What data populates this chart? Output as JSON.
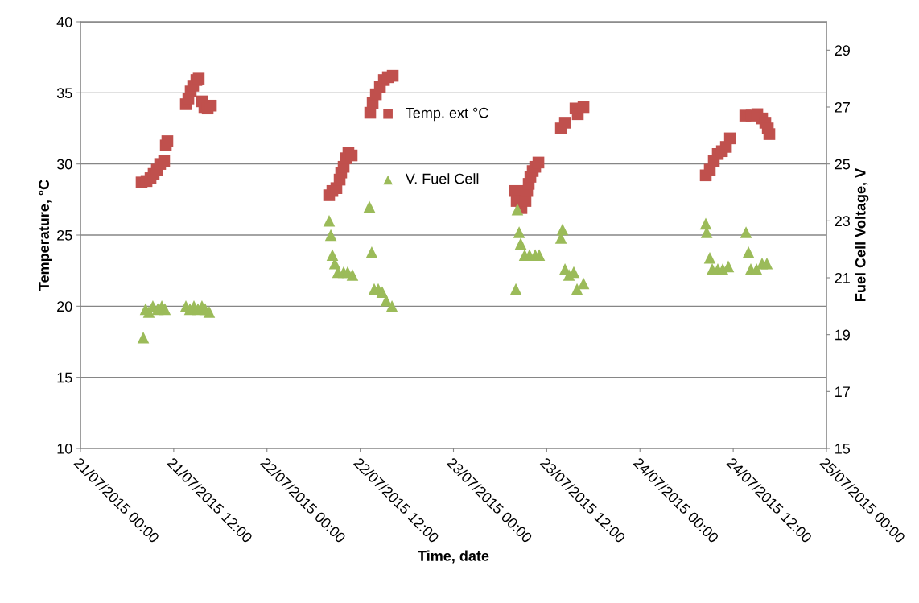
{
  "chart_data": {
    "type": "scatter",
    "xlabel": "Time, date",
    "ylabel": "Temperature, °C",
    "y2label": "Fuel Cell Voltage, V",
    "xlim": [
      "2015-07-21T00:00",
      "2015-07-25T00:00"
    ],
    "xticks": [
      {
        "value": "2015-07-21T00:00",
        "label": "21/07/2015 00:00"
      },
      {
        "value": "2015-07-21T12:00",
        "label": "21/07/2015 12:00"
      },
      {
        "value": "2015-07-22T00:00",
        "label": "22/07/2015 00:00"
      },
      {
        "value": "2015-07-22T12:00",
        "label": "22/07/2015 12:00"
      },
      {
        "value": "2015-07-23T00:00",
        "label": "23/07/2015 00:00"
      },
      {
        "value": "2015-07-23T12:00",
        "label": "23/07/2015 12:00"
      },
      {
        "value": "2015-07-24T00:00",
        "label": "24/07/2015 00:00"
      },
      {
        "value": "2015-07-24T12:00",
        "label": "24/07/2015 12:00"
      },
      {
        "value": "2015-07-25T00:00",
        "label": "25/07/2015 00:00"
      }
    ],
    "ylim": [
      10,
      40
    ],
    "yticks": [
      10,
      15,
      20,
      25,
      30,
      35,
      40
    ],
    "y2lim": [
      15,
      30
    ],
    "y2ticks": [
      15,
      17,
      19,
      21,
      23,
      25,
      27,
      29
    ],
    "grid": "y",
    "legend": "top",
    "series": [
      {
        "name": "Temp. ext °C",
        "color": "#c0504d",
        "marker": "square",
        "x": [
          "2015-07-21T07:52",
          "2015-07-21T08:30",
          "2015-07-21T09:01",
          "2015-07-21T09:25",
          "2015-07-21T09:50",
          "2015-07-21T10:15",
          "2015-07-21T10:46",
          "2015-07-21T10:59",
          "2015-07-21T11:11",
          "2015-07-21T13:34",
          "2015-07-21T13:53",
          "2015-07-21T14:11",
          "2015-07-21T14:30",
          "2015-07-21T14:55",
          "2015-07-21T15:13",
          "2015-07-21T15:38",
          "2015-07-21T15:57",
          "2015-07-21T16:22",
          "2015-07-21T16:47",
          "2015-07-22T08:00",
          "2015-07-22T08:25",
          "2015-07-22T08:56",
          "2015-07-22T09:21",
          "2015-07-22T09:33",
          "2015-07-22T09:52",
          "2015-07-22T10:11",
          "2015-07-22T10:29",
          "2015-07-22T10:54",
          "2015-07-22T13:17",
          "2015-07-22T13:36",
          "2015-07-22T14:01",
          "2015-07-22T14:32",
          "2015-07-22T15:03",
          "2015-07-22T15:34",
          "2015-07-22T16:11",
          "2015-07-23T07:56",
          "2015-07-23T08:08",
          "2015-07-23T08:45",
          "2015-07-23T09:16",
          "2015-07-23T09:29",
          "2015-07-23T09:41",
          "2015-07-23T09:54",
          "2015-07-23T10:12",
          "2015-07-23T10:31",
          "2015-07-23T10:56",
          "2015-07-23T13:50",
          "2015-07-23T14:21",
          "2015-07-23T15:42",
          "2015-07-23T16:00",
          "2015-07-23T16:44",
          "2015-07-24T08:28",
          "2015-07-24T08:59",
          "2015-07-24T09:30",
          "2015-07-24T10:01",
          "2015-07-24T10:33",
          "2015-07-24T11:04",
          "2015-07-24T11:35",
          "2015-07-24T13:33",
          "2015-07-24T14:22",
          "2015-07-24T15:06",
          "2015-07-24T15:43",
          "2015-07-24T16:08",
          "2015-07-24T16:27",
          "2015-07-24T16:39"
        ],
        "values": [
          28.7,
          28.8,
          29.0,
          29.3,
          29.6,
          30.0,
          30.2,
          31.3,
          31.6,
          34.2,
          34.6,
          35.1,
          35.5,
          35.9,
          36.0,
          34.4,
          34.0,
          33.9,
          34.1,
          27.8,
          28.1,
          28.3,
          28.9,
          29.4,
          29.8,
          30.4,
          30.8,
          30.6,
          33.6,
          34.3,
          34.9,
          35.4,
          35.9,
          36.1,
          36.2,
          28.1,
          27.4,
          26.9,
          27.4,
          28.1,
          28.6,
          29.1,
          29.5,
          29.8,
          30.1,
          32.5,
          32.9,
          33.9,
          33.5,
          34.0,
          29.2,
          29.6,
          30.2,
          30.7,
          30.9,
          31.2,
          31.8,
          33.4,
          33.4,
          33.5,
          33.2,
          32.9,
          32.5,
          32.1
        ]
      },
      {
        "name": "V. Fuel Cell",
        "color": "#9bbb59",
        "marker": "triangle",
        "axis": "y2",
        "x": [
          "2015-07-21T08:05",
          "2015-07-21T08:23",
          "2015-07-21T08:48",
          "2015-07-21T09:19",
          "2015-07-21T09:57",
          "2015-07-21T10:28",
          "2015-07-21T10:52",
          "2015-07-21T13:34",
          "2015-07-21T14:05",
          "2015-07-21T14:36",
          "2015-07-21T15:07",
          "2015-07-21T15:38",
          "2015-07-21T16:03",
          "2015-07-21T16:34",
          "2015-07-22T08:00",
          "2015-07-22T08:13",
          "2015-07-22T08:25",
          "2015-07-22T08:44",
          "2015-07-22T09:08",
          "2015-07-22T09:52",
          "2015-07-22T10:23",
          "2015-07-22T11:00",
          "2015-07-22T13:11",
          "2015-07-22T13:29",
          "2015-07-22T13:48",
          "2015-07-22T14:19",
          "2015-07-22T14:50",
          "2015-07-22T15:21",
          "2015-07-22T16:05",
          "2015-07-23T08:02",
          "2015-07-23T08:14",
          "2015-07-23T08:27",
          "2015-07-23T08:39",
          "2015-07-23T09:10",
          "2015-07-23T09:47",
          "2015-07-23T10:31",
          "2015-07-23T11:02",
          "2015-07-23T13:50",
          "2015-07-23T14:02",
          "2015-07-23T14:21",
          "2015-07-23T14:52",
          "2015-07-23T15:29",
          "2015-07-23T15:54",
          "2015-07-23T16:44",
          "2015-07-24T08:28",
          "2015-07-24T08:35",
          "2015-07-24T08:59",
          "2015-07-24T09:18",
          "2015-07-24T10:01",
          "2015-07-24T10:39",
          "2015-07-24T11:22",
          "2015-07-24T13:39",
          "2015-07-24T13:58",
          "2015-07-24T14:16",
          "2015-07-24T15:00",
          "2015-07-24T15:43",
          "2015-07-24T16:20"
        ],
        "values": [
          18.9,
          19.9,
          19.8,
          20.0,
          19.9,
          20.0,
          19.9,
          20.0,
          19.9,
          20.0,
          19.9,
          20.0,
          19.9,
          19.8,
          23.0,
          22.5,
          21.8,
          21.5,
          21.2,
          21.2,
          21.2,
          21.1,
          23.5,
          21.9,
          20.6,
          20.6,
          20.5,
          20.2,
          20.0,
          20.6,
          23.4,
          22.6,
          22.2,
          21.8,
          21.8,
          21.8,
          21.8,
          22.4,
          22.7,
          21.3,
          21.1,
          21.2,
          20.6,
          20.8,
          22.9,
          22.6,
          21.7,
          21.3,
          21.3,
          21.3,
          21.4,
          22.6,
          21.9,
          21.3,
          21.3,
          21.5,
          21.5
        ]
      }
    ]
  }
}
